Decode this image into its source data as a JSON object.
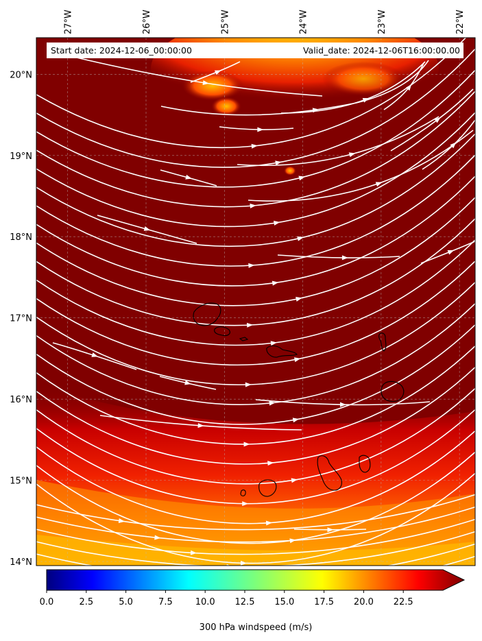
{
  "header": {
    "start_date": "Start date: 2024-12-06_00:00:00",
    "valid_date": "Valid_date: 2024-12-06T16:00:00.00"
  },
  "map": {
    "lon_labels": [
      "27°W",
      "26°W",
      "25°W",
      "24°W",
      "23°W",
      "22°W"
    ],
    "lat_labels": [
      "20°N",
      "19°N",
      "18°N",
      "17°N",
      "16°N",
      "15°N",
      "14°N"
    ],
    "lon_range": [
      -27.4,
      -21.8
    ],
    "lat_range": [
      13.95,
      20.45
    ],
    "field": "wind speed contour (filled) with streamlines",
    "background_color": "#800000",
    "streamline_color": "#ffffff",
    "coastline_color": "#000000"
  },
  "colorbar": {
    "ticks": [
      "0.0",
      "2.5",
      "5.0",
      "7.5",
      "10.0",
      "12.5",
      "15.0",
      "17.5",
      "20.0",
      "22.5"
    ],
    "range": [
      0,
      25
    ],
    "extend": "max",
    "colormap": "jet",
    "label": "300 hPa windspeed (m/s)"
  }
}
